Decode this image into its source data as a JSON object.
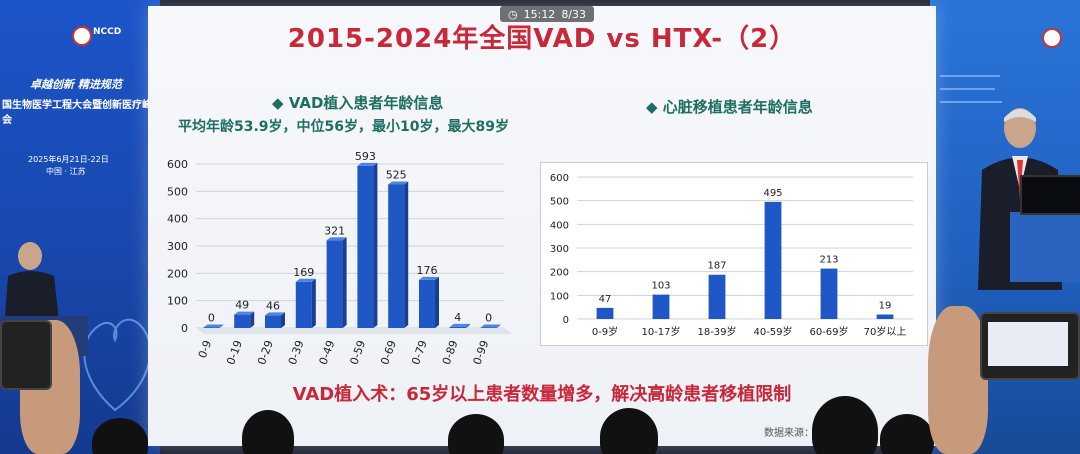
{
  "status": {
    "time": "15:12",
    "page": "8/33"
  },
  "slide": {
    "title": "2015-2024年全国VAD vs HTX-（2）",
    "left_heading": "◆ VAD植入患者年龄信息",
    "left_sub": "平均年龄53.9岁，中位56岁，最小10岁，最大89岁",
    "right_heading": "◆ 心脏移植患者年龄信息",
    "footer": "VAD植入术：65岁以上患者数量增多，解决高龄患者移植限制",
    "source": "数据来源："
  },
  "banner": {
    "logo": "NCCD",
    "line1": "卓越创新 精进规范",
    "line2": "国生物医学工程大会暨创新医疗峰会",
    "date": "2025年6月21日-22日",
    "place": "中国 · 江苏"
  },
  "chart_data": [
    {
      "type": "bar",
      "title": "",
      "categories": [
        "0-9",
        "10-19",
        "20-29",
        "30-39",
        "40-49",
        "50-59",
        "60-69",
        "70-79",
        "80-89",
        "90-99"
      ],
      "values": [
        0,
        49,
        46,
        169,
        321,
        593,
        525,
        176,
        4,
        0
      ],
      "ylim": [
        0,
        600
      ],
      "yticks": [
        0,
        100,
        200,
        300,
        400,
        500,
        600
      ],
      "color": "#1f57c4",
      "grid": true
    },
    {
      "type": "bar",
      "title": "",
      "categories": [
        "0-9岁",
        "10-17岁",
        "18-39岁",
        "40-59岁",
        "60-69岁",
        "70岁以上"
      ],
      "values": [
        47,
        103,
        187,
        495,
        213,
        19
      ],
      "ylim": [
        0,
        600
      ],
      "yticks": [
        0,
        100,
        200,
        300,
        400,
        500,
        600
      ],
      "color": "#1f57c4",
      "grid": true
    }
  ]
}
